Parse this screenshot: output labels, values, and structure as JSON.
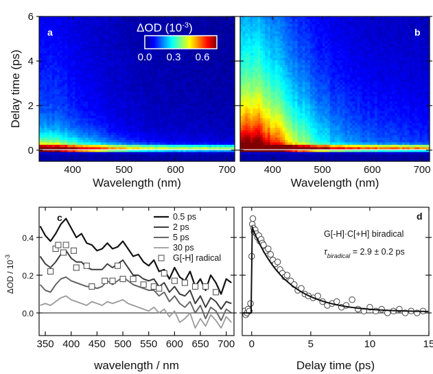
{
  "colors": {
    "colormap": [
      "#00008f",
      "#0000ff",
      "#0080ff",
      "#00ffff",
      "#80ff80",
      "#ffff00",
      "#ff8000",
      "#ff0000",
      "#800000"
    ],
    "c_0_5ps": "#111111",
    "c_2ps": "#3c3c3c",
    "c_5ps": "#666666",
    "c_30ps": "#9a9a9a",
    "marker": "#555555"
  },
  "chart_data": [
    {
      "panel": "a",
      "type": "heatmap",
      "panel_label": "a",
      "xlabel": "Wavelength (nm)",
      "ylabel": "Delay time (ps)",
      "xlim": [
        335,
        715
      ],
      "ylim": [
        -0.5,
        6
      ],
      "xticks": [
        400,
        500,
        600,
        700
      ],
      "yticks": [
        0,
        2,
        4,
        6
      ],
      "colorbar": {
        "label": "ΔOD (10",
        "label_exp": "-3",
        "label_close": ")",
        "ticks": [
          "0.0",
          "0.3",
          "0.6"
        ],
        "range": [
          0,
          0.75
        ]
      },
      "initial_decay_ps": 0.5,
      "long_component_fraction": 0.28
    },
    {
      "panel": "b",
      "type": "heatmap",
      "panel_label": "b",
      "xlabel": "Wavelength (nm)",
      "ylabel": "",
      "xlim": [
        335,
        715
      ],
      "ylim": [
        -0.5,
        6
      ],
      "xticks": [
        400,
        500,
        600,
        700
      ],
      "yticks": [
        0,
        2,
        4,
        6
      ],
      "initial_decay_ps": 1.6,
      "long_component_fraction": 0.55
    },
    {
      "panel": "c",
      "type": "line",
      "panel_label": "c",
      "xlabel": "wavelength / nm",
      "ylabel": "ΔOD / 10",
      "ylabel_exp": "-3",
      "xlim": [
        338,
        715
      ],
      "ylim": [
        -0.12,
        0.56
      ],
      "xticks": [
        350,
        400,
        450,
        500,
        550,
        600,
        650,
        700
      ],
      "yticks": [
        0.0,
        0.2,
        0.4
      ],
      "ytick_labels": [
        "0.0",
        "0.2",
        "0.4"
      ],
      "x": [
        340,
        350,
        360,
        370,
        380,
        390,
        400,
        410,
        420,
        430,
        440,
        450,
        460,
        470,
        480,
        490,
        500,
        510,
        520,
        530,
        540,
        550,
        560,
        570,
        580,
        590,
        600,
        610,
        620,
        630,
        640,
        650,
        660,
        670,
        680,
        690,
        700,
        710
      ],
      "series": [
        {
          "name": "0.5 ps",
          "values": [
            0.46,
            0.41,
            0.38,
            0.42,
            0.47,
            0.5,
            0.45,
            0.4,
            0.42,
            0.37,
            0.36,
            0.33,
            0.34,
            0.37,
            0.34,
            0.35,
            0.38,
            0.34,
            0.3,
            0.31,
            0.27,
            0.25,
            0.28,
            0.22,
            0.23,
            0.18,
            0.24,
            0.19,
            0.17,
            0.22,
            0.14,
            0.18,
            0.12,
            0.2,
            0.16,
            0.1,
            0.18,
            0.16
          ]
        },
        {
          "name": "2 ps",
          "values": [
            0.3,
            0.26,
            0.24,
            0.27,
            0.31,
            0.33,
            0.29,
            0.27,
            0.27,
            0.24,
            0.23,
            0.23,
            0.23,
            0.26,
            0.24,
            0.26,
            0.28,
            0.24,
            0.2,
            0.2,
            0.18,
            0.17,
            0.18,
            0.14,
            0.16,
            0.11,
            0.14,
            0.1,
            0.09,
            0.12,
            0.05,
            0.09,
            0.03,
            0.08,
            0.06,
            0.02,
            0.06,
            0.05
          ]
        },
        {
          "name": "5 ps",
          "values": [
            0.15,
            0.12,
            0.11,
            0.15,
            0.18,
            0.19,
            0.17,
            0.16,
            0.15,
            0.14,
            0.14,
            0.13,
            0.14,
            0.17,
            0.15,
            0.17,
            0.19,
            0.17,
            0.15,
            0.14,
            0.13,
            0.12,
            0.12,
            0.09,
            0.11,
            0.06,
            0.09,
            0.05,
            0.03,
            0.06,
            0.0,
            0.04,
            -0.03,
            0.03,
            0.01,
            -0.04,
            0.02,
            0.0
          ]
        },
        {
          "name": "30 ps",
          "values": [
            0.04,
            0.05,
            0.04,
            0.06,
            0.08,
            0.09,
            0.07,
            0.06,
            0.05,
            0.04,
            0.06,
            0.05,
            0.04,
            0.06,
            0.05,
            0.06,
            0.07,
            0.05,
            0.04,
            0.03,
            0.02,
            0.01,
            0.03,
            0.0,
            0.02,
            -0.02,
            0.01,
            -0.05,
            -0.03,
            0.0,
            -0.08,
            -0.03,
            -0.07,
            -0.01,
            -0.04,
            -0.08,
            -0.02,
            -0.05
          ]
        }
      ],
      "scatter_series": {
        "name": "G[-H] radical",
        "x": [
          360,
          370,
          375,
          385,
          390,
          405,
          410,
          430,
          440,
          465,
          480,
          490,
          500,
          520,
          540,
          560,
          570,
          580,
          600,
          620,
          640,
          660,
          680
        ],
        "values": [
          0.22,
          0.34,
          0.36,
          0.32,
          0.36,
          0.33,
          0.24,
          0.25,
          0.14,
          0.17,
          0.17,
          0.25,
          0.18,
          0.18,
          0.15,
          0.14,
          0.13,
          0.21,
          0.17,
          0.16,
          0.14,
          0.14,
          0.11
        ]
      },
      "legend": {
        "placement": "top-right",
        "entries": [
          "0.5 ps",
          "2 ps",
          "5 ps",
          "30 ps",
          "G[-H] radical"
        ]
      }
    },
    {
      "panel": "d",
      "type": "scatter",
      "panel_label": "d",
      "xlabel": "Delay time (ps)",
      "ylabel": "",
      "xlim": [
        -0.8,
        15
      ],
      "ylim": [
        -0.12,
        0.56
      ],
      "xticks": [
        0,
        5,
        10,
        15
      ],
      "annotation_1": "G[-H]·C[+H] biradical",
      "annotation_2_prefix": "τ",
      "annotation_2_sub": "biradical",
      "annotation_2_value": " = 2.9 ± 0.2 ps",
      "fit": {
        "amplitude": 0.455,
        "tau_ps": 2.9,
        "offset": 0.005
      },
      "x": [
        -0.7,
        -0.6,
        -0.5,
        -0.4,
        -0.3,
        -0.2,
        -0.1,
        0.0,
        0.05,
        0.1,
        0.15,
        0.2,
        0.3,
        0.4,
        0.5,
        0.6,
        0.7,
        0.8,
        0.9,
        1.0,
        1.2,
        1.4,
        1.6,
        1.8,
        2.0,
        2.2,
        2.4,
        2.6,
        2.8,
        3.0,
        3.3,
        3.6,
        3.9,
        4.2,
        4.5,
        4.8,
        5.2,
        5.6,
        6.0,
        6.4,
        6.8,
        7.2,
        7.6,
        8.0,
        8.5,
        9.0,
        9.5,
        10.0,
        10.5,
        11.0,
        11.5,
        12.0,
        12.5,
        13.0,
        13.5,
        14.0,
        14.5
      ],
      "values": [
        0.0,
        0.01,
        -0.01,
        0.0,
        0.02,
        0.01,
        0.05,
        0.3,
        0.47,
        0.5,
        0.45,
        0.43,
        0.44,
        0.42,
        0.4,
        0.41,
        0.38,
        0.39,
        0.37,
        0.36,
        0.33,
        0.34,
        0.31,
        0.28,
        0.26,
        0.27,
        0.23,
        0.21,
        0.19,
        0.2,
        0.17,
        0.15,
        0.12,
        0.13,
        0.1,
        0.09,
        0.08,
        0.09,
        0.06,
        0.04,
        0.05,
        0.06,
        0.03,
        0.04,
        0.07,
        0.02,
        0.01,
        0.03,
        0.01,
        0.02,
        0.0,
        0.01,
        0.02,
        0.0,
        0.01,
        0.0,
        0.01
      ]
    }
  ]
}
